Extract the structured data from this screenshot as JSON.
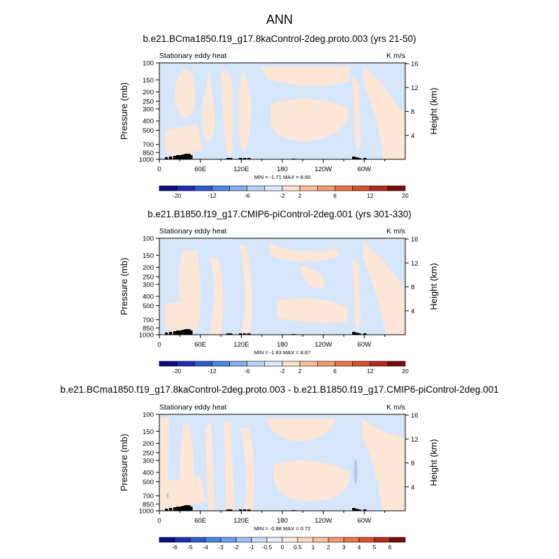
{
  "figure": {
    "title": "ANN"
  },
  "chart_data": [
    {
      "type": "heatmap",
      "title": "b.e21.BCma1850.f19_g17.8kaControl-2deg.proto.003 (yrs 21-50)",
      "left_string": "Stationary eddy heat",
      "units": "K m/s",
      "xlabel": "",
      "ylabel": "Pressure (mb)",
      "y2label": "Height (km)",
      "x_tick_labels": [
        "0",
        "60E",
        "120E",
        "180",
        "120W",
        "60W"
      ],
      "y_tick_labels": [
        "100",
        "150",
        "200",
        "250",
        "300",
        "400",
        "500",
        "700",
        "850",
        "1000"
      ],
      "y2_tick_labels": [
        "4",
        "8",
        "12",
        "16"
      ],
      "stats": "MIN =  -1.71  MAX =   8.60",
      "colorbar_labels": [
        "-20",
        "-12",
        "-6",
        "-2",
        "2",
        "6",
        "12",
        "20"
      ]
    },
    {
      "type": "heatmap",
      "title": "b.e21.B1850.f19_g17.CMIP6-piControl-2deg.001 (yrs 301-330)",
      "left_string": "Stationary eddy heat",
      "units": "K m/s",
      "xlabel": "",
      "ylabel": "Pressure (mb)",
      "y2label": "Height (km)",
      "x_tick_labels": [
        "0",
        "60E",
        "120E",
        "180",
        "120W",
        "60W"
      ],
      "y_tick_labels": [
        "100",
        "150",
        "200",
        "250",
        "300",
        "400",
        "500",
        "700",
        "850",
        "1000"
      ],
      "y2_tick_labels": [
        "4",
        "8",
        "12",
        "16"
      ],
      "stats": "MIN =  -1.83  MAX =   8.67",
      "colorbar_labels": [
        "-20",
        "-12",
        "-6",
        "-2",
        "2",
        "6",
        "12",
        "20"
      ]
    },
    {
      "type": "heatmap",
      "title": "b.e21.BCma1850.f19_g17.8kaControl-2deg.proto.003 - b.e21.B1850.f19_g17.CMIP6-piControl-2deg.001",
      "left_string": "Stationary eddy heat",
      "units": "K m/s",
      "xlabel": "",
      "ylabel": "Pressure (mb)",
      "y2label": "Height (km)",
      "x_tick_labels": [
        "0",
        "60E",
        "120E",
        "180",
        "120W",
        "60W"
      ],
      "y_tick_labels": [
        "100",
        "150",
        "200",
        "250",
        "300",
        "400",
        "500",
        "700",
        "850",
        "1000"
      ],
      "y2_tick_labels": [
        "4",
        "8",
        "12",
        "16"
      ],
      "stats": "MIN =  -0.88  MAX =   0.72",
      "colorbar_labels": [
        "-6",
        "-5",
        "-4",
        "-3",
        "-2",
        "-1",
        "-0.5",
        "0",
        "0.5",
        "1",
        "2",
        "3",
        "4",
        "5",
        "6"
      ]
    }
  ],
  "colors": {
    "neg_fill": "#d6e6fa",
    "pos_fill": "#fde6d6",
    "topo_fill": "#000000",
    "colorbar": [
      "#0d0d85",
      "#1a2fb8",
      "#2a5ad4",
      "#4a86e8",
      "#82aef0",
      "#b7d1f6",
      "#dbe8fb",
      "#fde0cc",
      "#f8bfa0",
      "#f29a72",
      "#ec7446",
      "#dc4f2c",
      "#b8281a",
      "#7d0c0c"
    ],
    "colorbar_diff": [
      "#0d0d85",
      "#1a2fb8",
      "#2a5ad4",
      "#4a86e8",
      "#6f9fed",
      "#9fc0f3",
      "#cddff9",
      "#e4eefc",
      "#feeee2",
      "#fcd9c2",
      "#f8bfa0",
      "#f29a72",
      "#ec7446",
      "#dc4f2c",
      "#b8281a",
      "#7d0c0c"
    ]
  }
}
